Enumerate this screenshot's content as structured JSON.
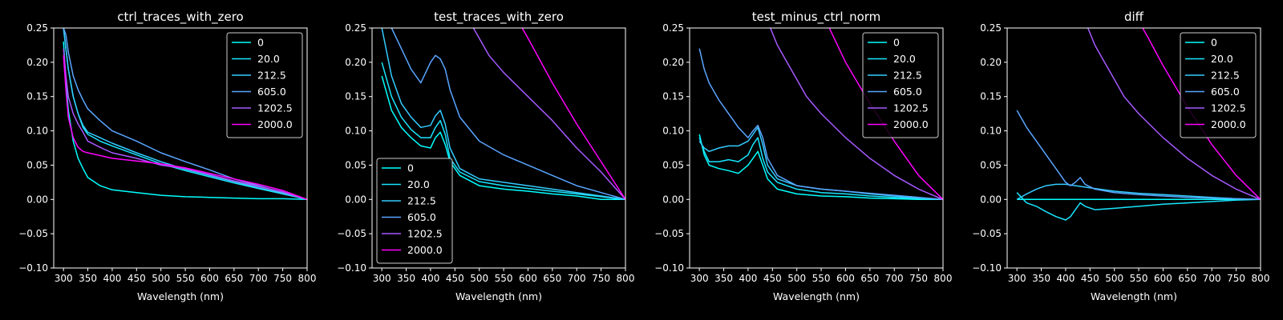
{
  "chart_data": [
    {
      "type": "line",
      "title": "ctrl_traces_with_zero",
      "xlabel": "Wavelength (nm)",
      "ylabel": "",
      "xlim": [
        280,
        800
      ],
      "ylim": [
        -0.1,
        0.25
      ],
      "xticks": [
        300,
        350,
        400,
        450,
        500,
        550,
        600,
        650,
        700,
        750,
        800
      ],
      "yticks": [
        -0.1,
        -0.05,
        0.0,
        0.05,
        0.1,
        0.15,
        0.2,
        0.25
      ],
      "legend": "top-right",
      "series": [
        {
          "name": "0",
          "color": "#00ffff",
          "x": [
            300,
            305,
            310,
            320,
            330,
            340,
            350,
            375,
            400,
            450,
            500,
            550,
            600,
            650,
            700,
            750,
            800
          ],
          "y": [
            0.23,
            0.17,
            0.13,
            0.085,
            0.06,
            0.045,
            0.032,
            0.02,
            0.014,
            0.01,
            0.006,
            0.004,
            0.003,
            0.002,
            0.001,
            0.001,
            0.0
          ]
        },
        {
          "name": "20.0",
          "color": "#19e6ff",
          "x": [
            300,
            305,
            310,
            320,
            330,
            340,
            350,
            375,
            400,
            450,
            500,
            550,
            600,
            650,
            700,
            750,
            800
          ],
          "y": [
            0.25,
            0.22,
            0.19,
            0.15,
            0.125,
            0.105,
            0.095,
            0.085,
            0.078,
            0.065,
            0.052,
            0.042,
            0.033,
            0.024,
            0.016,
            0.008,
            0.0
          ]
        },
        {
          "name": "212.5",
          "color": "#33ccff",
          "x": [
            300,
            305,
            310,
            320,
            330,
            340,
            350,
            375,
            400,
            450,
            500,
            550,
            600,
            650,
            700,
            750,
            800
          ],
          "y": [
            0.25,
            0.22,
            0.19,
            0.15,
            0.125,
            0.108,
            0.098,
            0.09,
            0.082,
            0.068,
            0.055,
            0.044,
            0.035,
            0.026,
            0.017,
            0.009,
            0.0
          ]
        },
        {
          "name": "605.0",
          "color": "#5aa5ff",
          "x": [
            300,
            305,
            310,
            320,
            330,
            340,
            350,
            375,
            400,
            450,
            500,
            550,
            600,
            650,
            700,
            750,
            800
          ],
          "y": [
            0.25,
            0.24,
            0.215,
            0.18,
            0.16,
            0.145,
            0.132,
            0.115,
            0.1,
            0.085,
            0.068,
            0.055,
            0.043,
            0.03,
            0.02,
            0.01,
            0.0
          ]
        },
        {
          "name": "1202.5",
          "color": "#a659ff",
          "x": [
            300,
            305,
            310,
            320,
            330,
            340,
            350,
            375,
            400,
            450,
            500,
            550,
            600,
            650,
            700,
            750,
            800
          ],
          "y": [
            0.22,
            0.18,
            0.15,
            0.125,
            0.11,
            0.098,
            0.085,
            0.076,
            0.068,
            0.06,
            0.05,
            0.045,
            0.036,
            0.027,
            0.019,
            0.011,
            0.0
          ]
        },
        {
          "name": "2000.0",
          "color": "#ff00ff",
          "x": [
            300,
            305,
            310,
            320,
            330,
            340,
            350,
            375,
            400,
            450,
            500,
            550,
            600,
            650,
            700,
            750,
            800
          ],
          "y": [
            0.21,
            0.16,
            0.12,
            0.09,
            0.076,
            0.07,
            0.068,
            0.064,
            0.06,
            0.056,
            0.052,
            0.046,
            0.038,
            0.03,
            0.022,
            0.013,
            0.0
          ]
        }
      ]
    },
    {
      "type": "line",
      "title": "test_traces_with_zero",
      "xlabel": "Wavelength (nm)",
      "ylabel": "",
      "xlim": [
        280,
        800
      ],
      "ylim": [
        -0.1,
        0.25
      ],
      "xticks": [
        300,
        350,
        400,
        450,
        500,
        550,
        600,
        650,
        700,
        750,
        800
      ],
      "yticks": [
        -0.1,
        -0.05,
        0.0,
        0.05,
        0.1,
        0.15,
        0.2,
        0.25
      ],
      "legend": "bottom-left",
      "series": [
        {
          "name": "0",
          "color": "#00ffff",
          "x": [
            300,
            320,
            340,
            360,
            380,
            400,
            410,
            420,
            430,
            440,
            460,
            500,
            550,
            600,
            650,
            700,
            750,
            800
          ],
          "y": [
            0.18,
            0.13,
            0.105,
            0.09,
            0.078,
            0.075,
            0.09,
            0.098,
            0.08,
            0.055,
            0.035,
            0.02,
            0.015,
            0.012,
            0.008,
            0.005,
            0.0,
            0.0
          ]
        },
        {
          "name": "20.0",
          "color": "#19e6ff",
          "x": [
            300,
            320,
            340,
            360,
            380,
            400,
            410,
            420,
            430,
            440,
            460,
            500,
            550,
            600,
            650,
            700,
            750,
            800
          ],
          "y": [
            0.2,
            0.15,
            0.12,
            0.102,
            0.09,
            0.09,
            0.105,
            0.115,
            0.095,
            0.06,
            0.04,
            0.026,
            0.02,
            0.016,
            0.012,
            0.008,
            0.004,
            0.0
          ]
        },
        {
          "name": "212.5",
          "color": "#33ccff",
          "x": [
            300,
            320,
            340,
            360,
            380,
            400,
            410,
            420,
            430,
            440,
            460,
            500,
            550,
            600,
            650,
            700,
            750,
            800
          ],
          "y": [
            0.25,
            0.18,
            0.14,
            0.12,
            0.105,
            0.108,
            0.122,
            0.13,
            0.11,
            0.075,
            0.045,
            0.03,
            0.025,
            0.02,
            0.015,
            0.01,
            0.005,
            0.0
          ]
        },
        {
          "name": "605.0",
          "color": "#5aa5ff",
          "x": [
            300,
            320,
            340,
            360,
            380,
            400,
            410,
            420,
            430,
            440,
            460,
            500,
            550,
            600,
            650,
            700,
            750,
            800
          ],
          "y": [
            0.26,
            0.25,
            0.22,
            0.19,
            0.17,
            0.2,
            0.21,
            0.205,
            0.19,
            0.16,
            0.12,
            0.085,
            0.065,
            0.05,
            0.035,
            0.02,
            0.01,
            0.0
          ]
        },
        {
          "name": "1202.5",
          "color": "#a659ff",
          "x": [
            480,
            500,
            520,
            550,
            600,
            650,
            700,
            750,
            800
          ],
          "y": [
            0.26,
            0.235,
            0.21,
            0.185,
            0.15,
            0.115,
            0.075,
            0.04,
            0.0
          ]
        },
        {
          "name": "2000.0",
          "color": "#ff00ff",
          "x": [
            580,
            600,
            650,
            700,
            750,
            800
          ],
          "y": [
            0.26,
            0.235,
            0.17,
            0.11,
            0.055,
            0.0
          ]
        }
      ]
    },
    {
      "type": "line",
      "title": "test_minus_ctrl_norm",
      "xlabel": "Wavelength (nm)",
      "ylabel": "",
      "xlim": [
        280,
        800
      ],
      "ylim": [
        -0.1,
        0.25
      ],
      "xticks": [
        300,
        350,
        400,
        450,
        500,
        550,
        600,
        650,
        700,
        750,
        800
      ],
      "yticks": [
        -0.1,
        -0.05,
        0.0,
        0.05,
        0.1,
        0.15,
        0.2,
        0.25
      ],
      "legend": "top-right",
      "series": [
        {
          "name": "0",
          "color": "#00ffff",
          "x": [
            300,
            310,
            320,
            340,
            360,
            380,
            400,
            410,
            420,
            430,
            440,
            460,
            500,
            550,
            600,
            650,
            700,
            750,
            800
          ],
          "y": [
            0.095,
            0.065,
            0.05,
            0.045,
            0.042,
            0.038,
            0.05,
            0.06,
            0.07,
            0.05,
            0.03,
            0.015,
            0.008,
            0.005,
            0.004,
            0.002,
            0.001,
            0.0,
            0.0
          ]
        },
        {
          "name": "20.0",
          "color": "#19e6ff",
          "x": [
            300,
            310,
            320,
            340,
            360,
            380,
            400,
            410,
            420,
            430,
            440,
            460,
            500,
            550,
            600,
            650,
            700,
            750,
            800
          ],
          "y": [
            0.09,
            0.07,
            0.055,
            0.055,
            0.058,
            0.055,
            0.065,
            0.08,
            0.09,
            0.06,
            0.04,
            0.025,
            0.015,
            0.01,
            0.008,
            0.005,
            0.003,
            0.001,
            0.0
          ]
        },
        {
          "name": "212.5",
          "color": "#33ccff",
          "x": [
            300,
            310,
            320,
            340,
            360,
            380,
            400,
            410,
            420,
            430,
            440,
            460,
            500,
            550,
            600,
            650,
            700,
            750,
            800
          ],
          "y": [
            0.085,
            0.075,
            0.07,
            0.075,
            0.078,
            0.078,
            0.085,
            0.095,
            0.105,
            0.08,
            0.05,
            0.03,
            0.02,
            0.015,
            0.012,
            0.008,
            0.005,
            0.002,
            0.0
          ]
        },
        {
          "name": "605.0",
          "color": "#5aa5ff",
          "x": [
            300,
            310,
            320,
            340,
            360,
            380,
            400,
            410,
            420,
            430,
            440,
            460,
            500,
            550,
            600,
            650,
            700,
            750,
            800
          ],
          "y": [
            0.22,
            0.19,
            0.17,
            0.145,
            0.125,
            0.105,
            0.09,
            0.1,
            0.108,
            0.09,
            0.06,
            0.035,
            0.02,
            0.015,
            0.012,
            0.009,
            0.006,
            0.003,
            0.0
          ]
        },
        {
          "name": "1202.5",
          "color": "#a659ff",
          "x": [
            440,
            460,
            480,
            500,
            520,
            550,
            600,
            650,
            700,
            750,
            800
          ],
          "y": [
            0.26,
            0.225,
            0.2,
            0.175,
            0.15,
            0.125,
            0.09,
            0.06,
            0.035,
            0.015,
            0.0
          ]
        },
        {
          "name": "2000.0",
          "color": "#ff00ff",
          "x": [
            560,
            580,
            600,
            650,
            700,
            750,
            800
          ],
          "y": [
            0.26,
            0.23,
            0.2,
            0.14,
            0.085,
            0.035,
            0.0
          ]
        }
      ]
    },
    {
      "type": "line",
      "title": "diff",
      "xlabel": "Wavelength (nm)",
      "ylabel": "",
      "xlim": [
        280,
        800
      ],
      "ylim": [
        -0.1,
        0.25
      ],
      "xticks": [
        300,
        350,
        400,
        450,
        500,
        550,
        600,
        650,
        700,
        750,
        800
      ],
      "yticks": [
        -0.1,
        -0.05,
        0.0,
        0.05,
        0.1,
        0.15,
        0.2,
        0.25
      ],
      "legend": "top-right",
      "series": [
        {
          "name": "0",
          "color": "#00ffff",
          "x": [
            300,
            800
          ],
          "y": [
            0.0,
            0.0
          ]
        },
        {
          "name": "20.0",
          "color": "#19e6ff",
          "x": [
            300,
            320,
            340,
            360,
            380,
            400,
            410,
            420,
            430,
            440,
            460,
            500,
            550,
            600,
            650,
            700,
            750,
            800
          ],
          "y": [
            0.01,
            -0.005,
            -0.01,
            -0.018,
            -0.025,
            -0.03,
            -0.025,
            -0.015,
            -0.005,
            -0.01,
            -0.015,
            -0.013,
            -0.01,
            -0.007,
            -0.005,
            -0.003,
            -0.001,
            0.0
          ]
        },
        {
          "name": "212.5",
          "color": "#33ccff",
          "x": [
            300,
            320,
            340,
            360,
            380,
            400,
            420,
            440,
            460,
            500,
            550,
            600,
            650,
            700,
            750,
            800
          ],
          "y": [
            0.0,
            0.008,
            0.015,
            0.02,
            0.022,
            0.022,
            0.02,
            0.018,
            0.016,
            0.012,
            0.009,
            0.007,
            0.005,
            0.003,
            0.001,
            0.0
          ]
        },
        {
          "name": "605.0",
          "color": "#5aa5ff",
          "x": [
            300,
            320,
            340,
            360,
            380,
            400,
            410,
            420,
            430,
            440,
            460,
            500,
            550,
            600,
            650,
            700,
            750,
            800
          ],
          "y": [
            0.13,
            0.105,
            0.085,
            0.065,
            0.045,
            0.025,
            0.02,
            0.025,
            0.032,
            0.022,
            0.015,
            0.01,
            0.007,
            0.005,
            0.003,
            0.002,
            0.001,
            0.0
          ]
        },
        {
          "name": "1202.5",
          "color": "#a659ff",
          "x": [
            440,
            460,
            480,
            500,
            520,
            550,
            600,
            650,
            700,
            750,
            800
          ],
          "y": [
            0.26,
            0.225,
            0.2,
            0.175,
            0.15,
            0.125,
            0.09,
            0.06,
            0.035,
            0.015,
            0.0
          ]
        },
        {
          "name": "2000.0",
          "color": "#ff00ff",
          "x": [
            550,
            570,
            600,
            650,
            700,
            750,
            800
          ],
          "y": [
            0.26,
            0.235,
            0.195,
            0.135,
            0.08,
            0.035,
            0.0
          ]
        }
      ]
    }
  ]
}
